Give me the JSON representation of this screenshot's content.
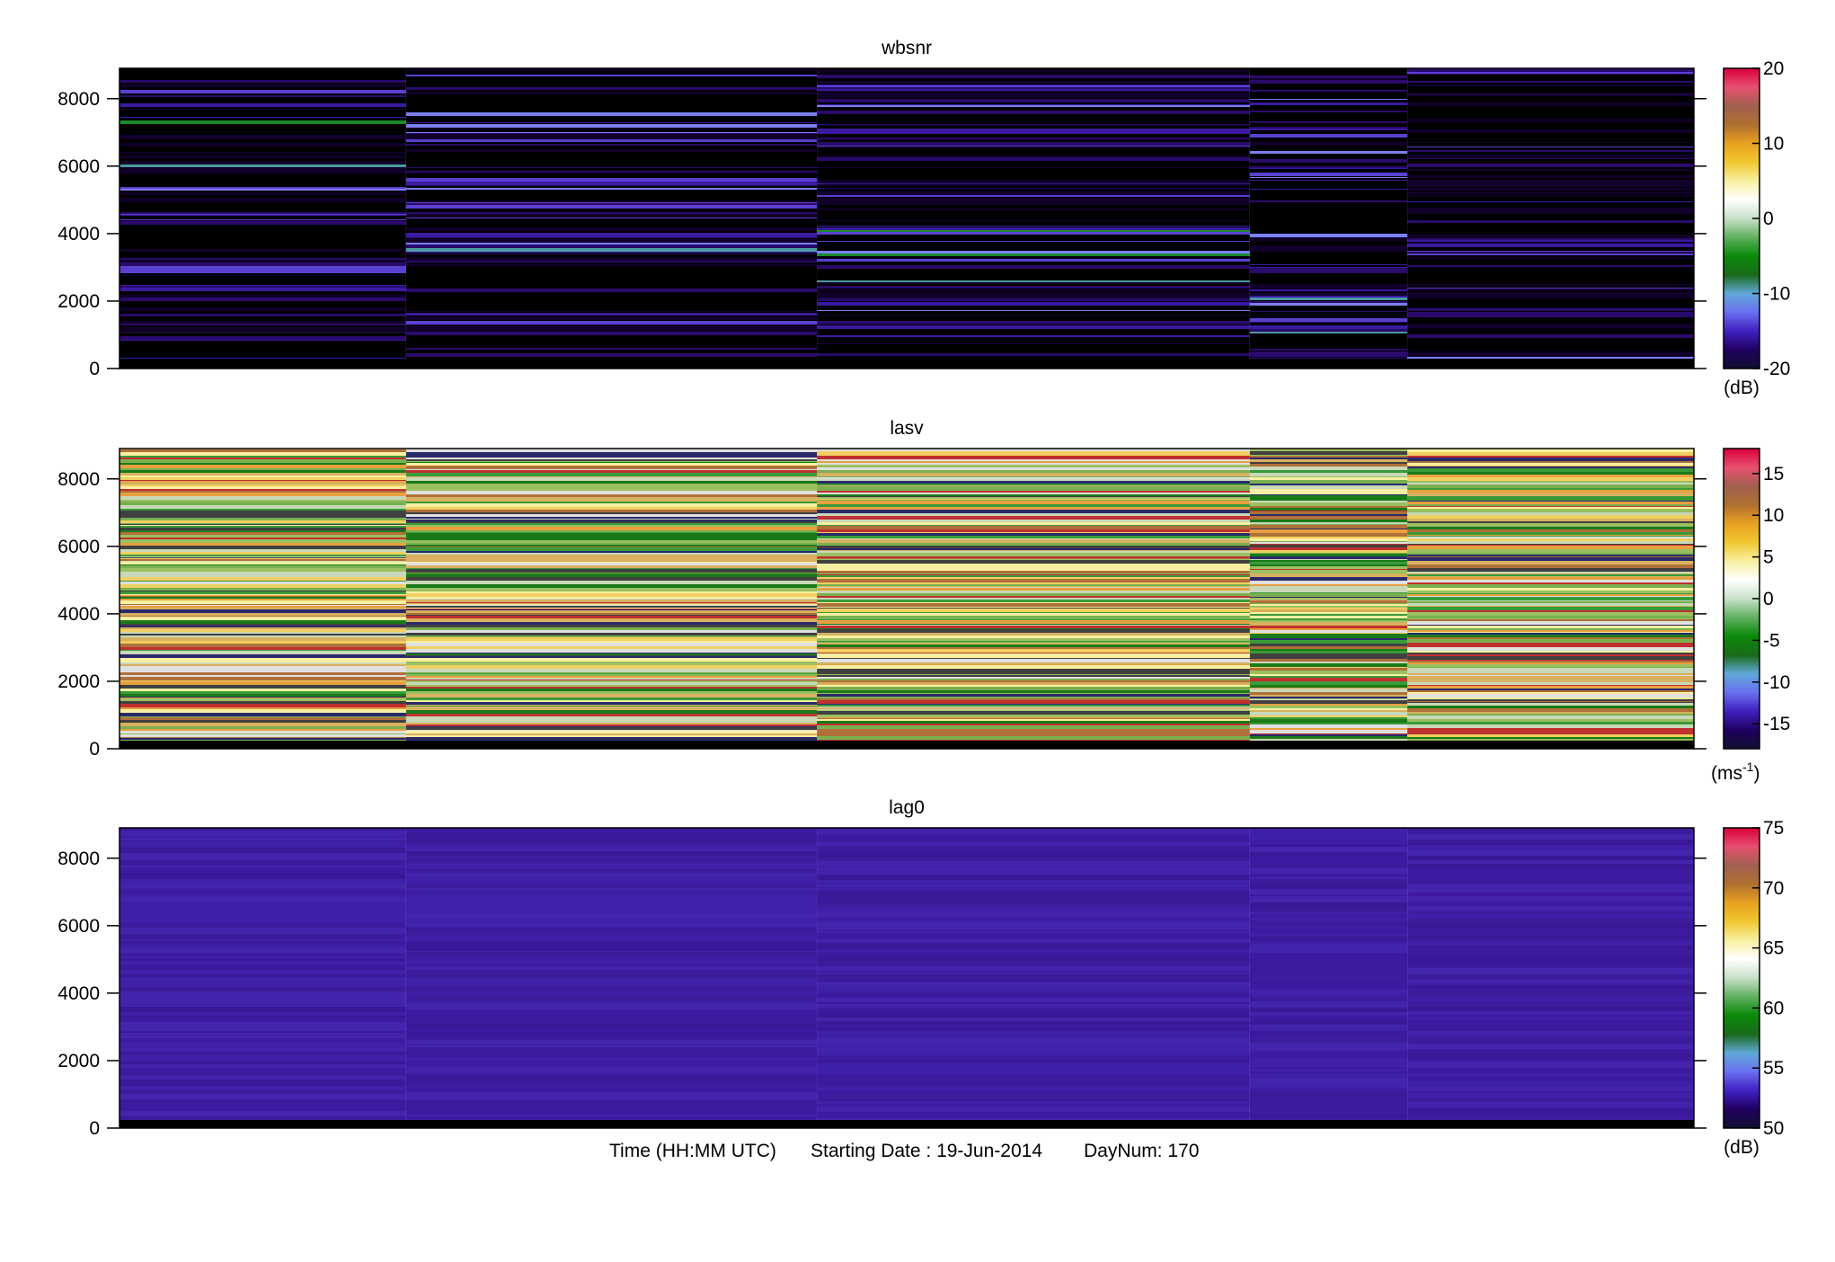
{
  "figure": {
    "footer": {
      "time_label": "Time (HH:MM UTC)",
      "starting_date": "Starting Date : 19-Jun-2014",
      "daynum": "DayNum: 170"
    }
  },
  "colormap_stops": [
    "#ffffff",
    "#f0f0f0",
    "#cfe3cf",
    "#7fbf7f",
    "#2a9a2a",
    "#0e7a0e",
    "#4aa0a0",
    "#6aaaf0",
    "#5a50d8",
    "#3a1aa0",
    "#1a0a50",
    "#000000"
  ],
  "chart_data": [
    {
      "type": "heatmap",
      "title": "wbsnr",
      "xlabel": "",
      "ylabel": "",
      "ylim": [
        0,
        8900
      ],
      "yticks": [
        0,
        2000,
        4000,
        6000,
        8000
      ],
      "yticklabels": [
        "0",
        "2000",
        "4000",
        "6000",
        "8000"
      ],
      "colorbar": {
        "range": [
          -20,
          20
        ],
        "ticks": [
          20,
          10,
          0,
          -10,
          -20
        ],
        "ticklabels": [
          "20",
          "10",
          "0",
          "-10",
          "-20"
        ],
        "unit": "(dB)",
        "colors": [
          "#d8003a",
          "#e85070",
          "#a06050",
          "#b07030",
          "#e8a020",
          "#f0c830",
          "#f8f0a0",
          "#ffffff",
          "#c8e0c8",
          "#60b060",
          "#0a8a0a",
          "#1a6a1a",
          "#60a8d8",
          "#6a70f0",
          "#4020c0",
          "#200060",
          "#101030"
        ]
      },
      "time_blocks": [
        0.0,
        0.182,
        0.443,
        0.718,
        0.818,
        1.0
      ],
      "typical_colors": [
        "#000000",
        "#10002a",
        "#2a0a6a",
        "#3a1aa0",
        "#5a40d0",
        "#7a80f0",
        "#4a9aa0",
        "#1a8a2a"
      ]
    },
    {
      "type": "heatmap",
      "title": "lasv",
      "xlabel": "",
      "ylabel": "",
      "ylim": [
        0,
        8900
      ],
      "yticks": [
        0,
        2000,
        4000,
        6000,
        8000
      ],
      "yticklabels": [
        "0",
        "2000",
        "4000",
        "6000",
        "8000"
      ],
      "colorbar": {
        "range": [
          -18,
          18
        ],
        "ticks": [
          15,
          10,
          5,
          0,
          -5,
          -10,
          -15
        ],
        "ticklabels": [
          "15",
          "10",
          "5",
          "0",
          "-5",
          "-10",
          "-15"
        ],
        "unit": "(ms-1)",
        "unit_base": "(ms",
        "unit_sup": "-1",
        "unit_close": ")",
        "colors": [
          "#d8003a",
          "#e85070",
          "#a06050",
          "#b07030",
          "#e8a020",
          "#f0c830",
          "#f8f0a0",
          "#ffffff",
          "#c8e0c8",
          "#60b060",
          "#0a8a0a",
          "#1a6a1a",
          "#60a8d8",
          "#6a70f0",
          "#4020c0",
          "#200060",
          "#101030"
        ]
      },
      "time_blocks": [
        0.0,
        0.182,
        0.443,
        0.718,
        0.818,
        1.0
      ],
      "typical_colors": [
        "#e8a040",
        "#f0d060",
        "#9ac060",
        "#3a9a3a",
        "#1a7a1a",
        "#c8d8b8",
        "#e0e0e0",
        "#b0703a",
        "#c03030",
        "#404040",
        "#2a2a6a",
        "#f8f0a0",
        "#7ab050",
        "#d8b060"
      ]
    },
    {
      "type": "heatmap",
      "title": "lag0",
      "xlabel": "",
      "ylabel": "",
      "ylim": [
        0,
        8900
      ],
      "yticks": [
        0,
        2000,
        4000,
        6000,
        8000
      ],
      "yticklabels": [
        "0",
        "2000",
        "4000",
        "6000",
        "8000"
      ],
      "colorbar": {
        "range": [
          50,
          75
        ],
        "ticks": [
          75,
          70,
          65,
          60,
          55,
          50
        ],
        "ticklabels": [
          "75",
          "70",
          "65",
          "60",
          "55",
          "50"
        ],
        "unit": "(dB)",
        "colors": [
          "#d8003a",
          "#e85070",
          "#a06050",
          "#b07030",
          "#e8a020",
          "#f0c830",
          "#f8f0a0",
          "#ffffff",
          "#c8e0c8",
          "#60b060",
          "#0a8a0a",
          "#1a6a1a",
          "#60a8d8",
          "#6a70f0",
          "#4020c0",
          "#200060",
          "#101030"
        ]
      },
      "time_blocks": [
        0.0,
        0.182,
        0.443,
        0.718,
        0.818,
        1.0
      ],
      "typical_colors": [
        "#3e1aa0",
        "#4020a8",
        "#3a1898",
        "#4424ac",
        "#3c1c9c"
      ]
    }
  ]
}
